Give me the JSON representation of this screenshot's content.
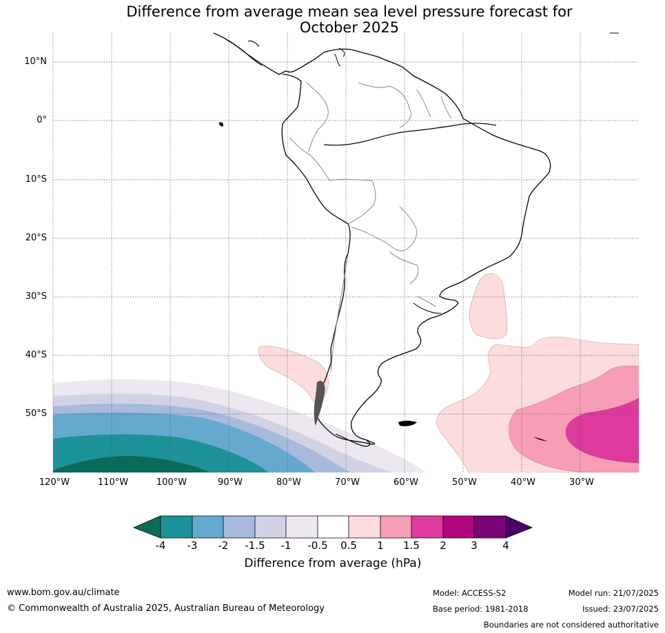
{
  "title": {
    "line1": "Difference from average mean sea level pressure forecast for",
    "line2": "October 2025"
  },
  "map": {
    "lat_ticks": [
      "10°N",
      "0°",
      "10°S",
      "20°S",
      "30°S",
      "40°S",
      "50°S"
    ],
    "lon_ticks": [
      "120°W",
      "110°W",
      "100°W",
      "90°W",
      "80°W",
      "70°W",
      "60°W",
      "50°W",
      "40°W",
      "30°W"
    ]
  },
  "colorbar": {
    "labels": [
      "-4",
      "-3",
      "-2",
      "-1.5",
      "-1",
      "-0.5",
      "0.5",
      "1",
      "1.5",
      "2",
      "3",
      "4"
    ],
    "colors": {
      "below_min": "#0b6b5a",
      "n4_n3": "#1d9298",
      "n3_n2": "#65a9d0",
      "n2_n15": "#a7badb",
      "n15_n1": "#d1d2e6",
      "n1_n05": "#ede8ef",
      "n05_p05": "#ffffff",
      "p05_p1": "#fcdcdc",
      "p1_p15": "#f79db6",
      "p15_p2": "#de3a9d",
      "p2_p3": "#b10580",
      "p3_p4": "#7c0479",
      "above_max": "#49006a"
    },
    "title": "Difference from average (hPa)"
  },
  "footer": {
    "url": "www.bom.gov.au/climate",
    "copyright": "© Commonwealth of Australia 2025, Australian Bureau of Meteorology",
    "model": "Model: ACCESS-S2",
    "base_period": "Base period: 1981-2018",
    "model_run": "Model run: 21/07/2025",
    "issued": "Issued: 23/07/2025",
    "disclaimer": "Boundaries are not considered authoritative"
  }
}
